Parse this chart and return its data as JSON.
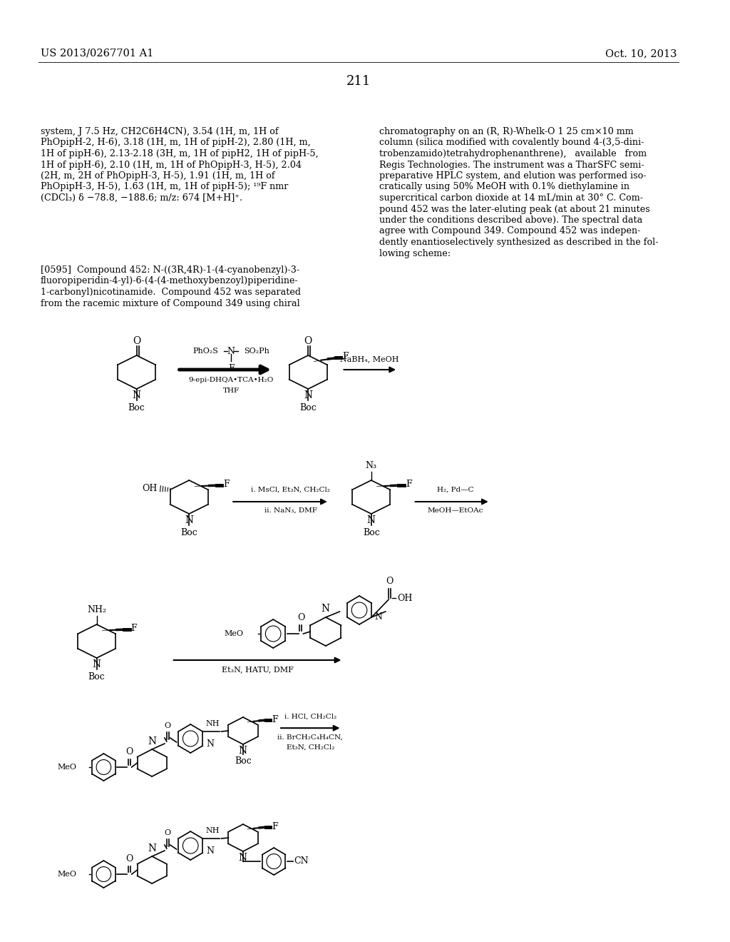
{
  "header_left": "US 2013/0267701 A1",
  "header_right": "Oct. 10, 2013",
  "page_number": "211",
  "bg_color": "#ffffff",
  "text_color": "#000000",
  "body_fontsize": 9.2,
  "left_col_lines": [
    "system, J 7.5 Hz, CH2C6H4CN), 3.54 (1H, m, 1H of",
    "PhOpipH-2, H-6), 3.18 (1H, m, 1H of pipH-2), 2.80 (1H, m,",
    "1H of pipH-6), 2.13-2.18 (3H, m, 1H of pipH2, 1H of pipH-5,",
    "1H of pipH-6), 2.10 (1H, m, 1H of PhOpipH-3, H-5), 2.04",
    "(2H, m, 2H of PhOpipH-3, H-5), 1.91 (1H, m, 1H of",
    "PhOpipH-3, H-5), 1.63 (1H, m, 1H of pipH-5); ¹⁹F nmr",
    "(CDCl₃) δ −78.8, −188.6; m/z: 674 [M+H]⁺."
  ],
  "right_col_lines": [
    "chromatography on an (R, R)-Whelk-O 1 25 cm×10 mm",
    "column (silica modified with covalently bound 4-(3,5-dini-",
    "trobenzamido)tetrahydrophenanthrene),   available   from",
    "Regis Technologies. The instrument was a TharSFC semi-",
    "preparative HPLC system, and elution was performed iso-",
    "cratically using 50% MeOH with 0.1% diethylamine in",
    "supercritical carbon dioxide at 14 mL/min at 30° C. Com-",
    "pound 452 was the later-eluting peak (at about 21 minutes",
    "under the conditions described above). The spectral data",
    "agree with Compound 349. Compound 452 was indepen-",
    "dently enantioselectively synthesized as described in the fol-",
    "lowing scheme:"
  ],
  "para_lines": [
    "[0595]  Compound 452: N-((3R,4R)-1-(4-cyanobenzyl)-3-",
    "fluoropiperidin-4-yl)-6-(4-(4-methoxybenzoyl)piperidine-",
    "1-carbonyl)nicotinamide.  Compound 452 was separated",
    "from the racemic mixture of Compound 349 using chiral"
  ]
}
